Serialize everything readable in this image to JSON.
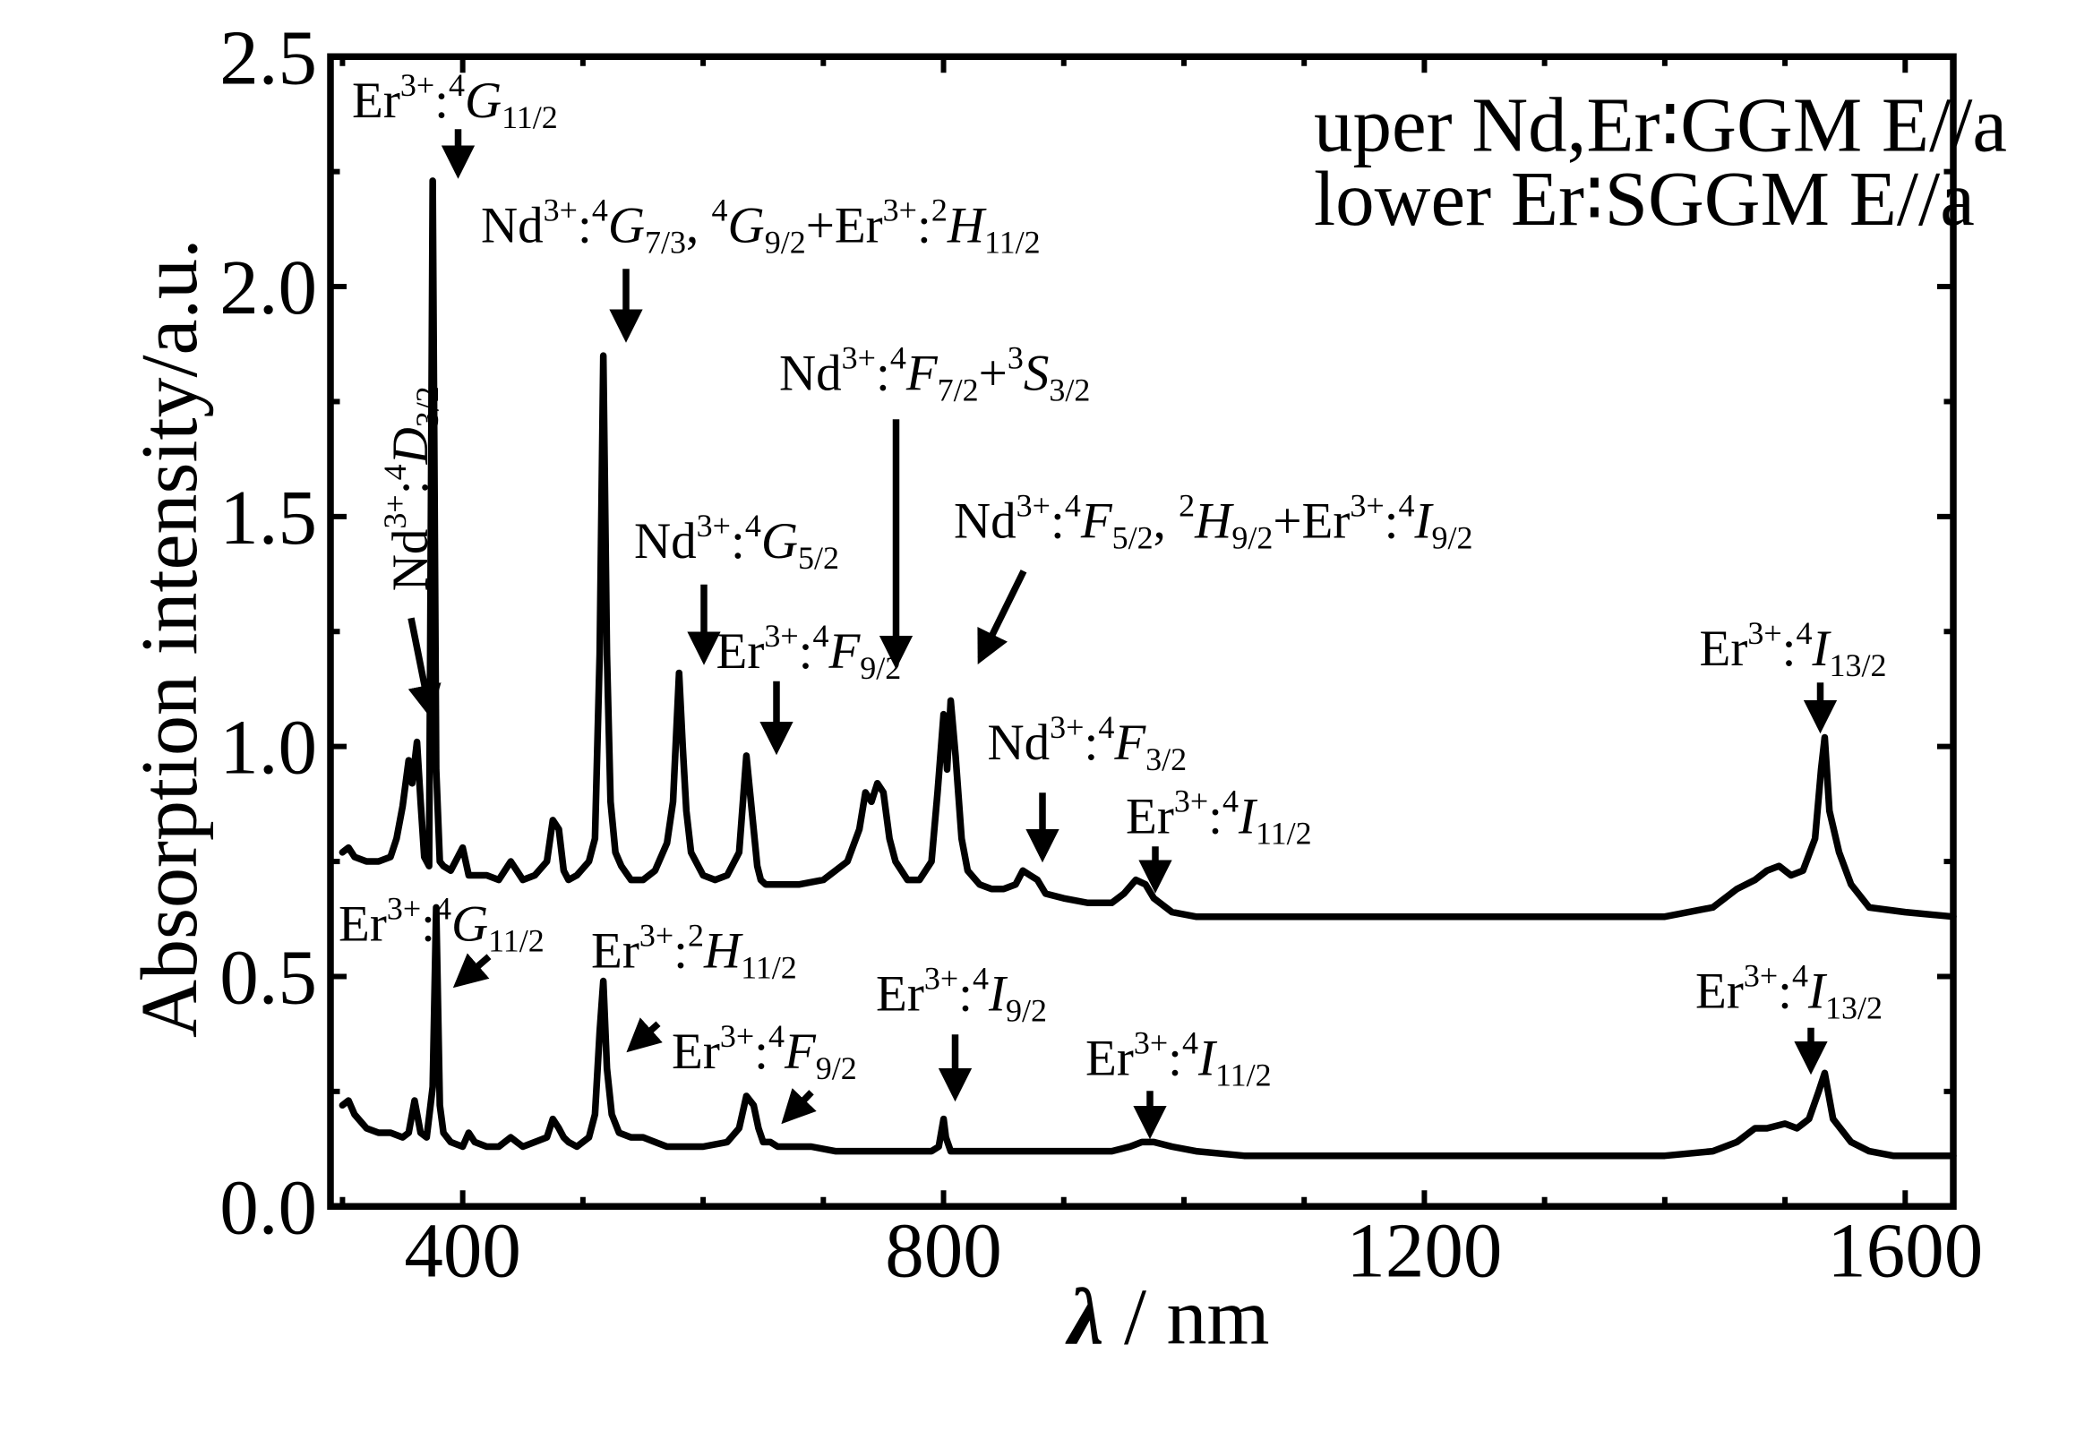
{
  "chart_data": {
    "type": "line",
    "title": "",
    "xlabel_symbol": "λ",
    "xlabel_unit": "/ nm",
    "ylabel": "Absorption intensity/a.u.",
    "xlim": [
      290,
      1640
    ],
    "ylim": [
      0,
      2.5
    ],
    "xticks": [
      400,
      800,
      1200,
      1600
    ],
    "xtick_labels": [
      "400",
      "800",
      "1200",
      "1600"
    ],
    "yticks": [
      0,
      0.5,
      1.0,
      1.5,
      2.0,
      2.5
    ],
    "ytick_labels": [
      "0.0",
      "0.5",
      "1.0",
      "1.5",
      "2.0",
      "2.5"
    ],
    "grid": false,
    "legend_position": "top-right",
    "legend_lines": [
      "uper Nd,Er∶GGM E//a",
      "lower Er∶SGGM   E//a"
    ],
    "series": [
      {
        "x": [
          300,
          305,
          310,
          320,
          330,
          340,
          345,
          350,
          355,
          358,
          362,
          365,
          368,
          372,
          375,
          378,
          381,
          384,
          390,
          400,
          405,
          410,
          420,
          430,
          440,
          445,
          450,
          460,
          470,
          475,
          480,
          484,
          488,
          495,
          505,
          510,
          514,
          517,
          520,
          523,
          527,
          532,
          540,
          550,
          560,
          570,
          575,
          580,
          583,
          586,
          590,
          600,
          610,
          620,
          630,
          636,
          642,
          645,
          648,
          652,
          660,
          670,
          680,
          700,
          720,
          730,
          735,
          740,
          745,
          750,
          755,
          760,
          770,
          780,
          790,
          795,
          800,
          803,
          806,
          810,
          815,
          820,
          830,
          840,
          850,
          860,
          866,
          872,
          878,
          885,
          900,
          920,
          940,
          950,
          960,
          968,
          975,
          990,
          1010,
          1050,
          1100,
          1200,
          1300,
          1400,
          1440,
          1460,
          1475,
          1485,
          1495,
          1505,
          1515,
          1525,
          1530,
          1533,
          1537,
          1545,
          1555,
          1570,
          1600,
          1640
        ],
        "y": [
          0.77,
          0.78,
          0.76,
          0.75,
          0.75,
          0.76,
          0.8,
          0.87,
          0.97,
          0.92,
          1.01,
          0.88,
          0.76,
          0.74,
          2.23,
          0.95,
          0.75,
          0.74,
          0.73,
          0.78,
          0.72,
          0.72,
          0.72,
          0.71,
          0.75,
          0.73,
          0.71,
          0.72,
          0.75,
          0.84,
          0.82,
          0.73,
          0.71,
          0.72,
          0.75,
          0.8,
          1.2,
          1.85,
          1.2,
          0.88,
          0.77,
          0.74,
          0.71,
          0.71,
          0.73,
          0.79,
          0.88,
          1.16,
          1.0,
          0.86,
          0.77,
          0.72,
          0.71,
          0.72,
          0.77,
          0.98,
          0.82,
          0.74,
          0.71,
          0.7,
          0.7,
          0.7,
          0.7,
          0.71,
          0.75,
          0.82,
          0.9,
          0.88,
          0.92,
          0.9,
          0.8,
          0.75,
          0.71,
          0.71,
          0.75,
          0.9,
          1.07,
          0.95,
          1.1,
          0.98,
          0.8,
          0.73,
          0.7,
          0.69,
          0.69,
          0.7,
          0.73,
          0.72,
          0.71,
          0.68,
          0.67,
          0.66,
          0.66,
          0.68,
          0.71,
          0.7,
          0.67,
          0.64,
          0.63,
          0.63,
          0.63,
          0.63,
          0.63,
          0.63,
          0.65,
          0.69,
          0.71,
          0.73,
          0.74,
          0.72,
          0.73,
          0.8,
          0.95,
          1.02,
          0.86,
          0.77,
          0.7,
          0.65,
          0.64,
          0.63
        ]
      },
      {
        "x": [
          300,
          305,
          310,
          320,
          330,
          340,
          350,
          355,
          360,
          365,
          370,
          375,
          378,
          381,
          384,
          390,
          400,
          405,
          410,
          420,
          430,
          440,
          445,
          450,
          460,
          470,
          475,
          480,
          484,
          488,
          495,
          505,
          510,
          514,
          517,
          520,
          524,
          530,
          540,
          550,
          560,
          570,
          580,
          590,
          600,
          620,
          630,
          636,
          642,
          646,
          650,
          656,
          662,
          670,
          690,
          710,
          750,
          780,
          790,
          796,
          800,
          802,
          806,
          810,
          830,
          860,
          900,
          940,
          955,
          965,
          975,
          990,
          1010,
          1050,
          1100,
          1200,
          1300,
          1400,
          1440,
          1460,
          1475,
          1485,
          1500,
          1510,
          1515,
          1520,
          1528,
          1533,
          1540,
          1555,
          1570,
          1590,
          1610,
          1640
        ],
        "y": [
          0.22,
          0.23,
          0.2,
          0.17,
          0.16,
          0.16,
          0.15,
          0.16,
          0.23,
          0.16,
          0.15,
          0.26,
          0.65,
          0.22,
          0.16,
          0.14,
          0.13,
          0.16,
          0.14,
          0.13,
          0.13,
          0.15,
          0.14,
          0.13,
          0.14,
          0.15,
          0.19,
          0.17,
          0.15,
          0.14,
          0.13,
          0.15,
          0.2,
          0.38,
          0.49,
          0.3,
          0.2,
          0.16,
          0.15,
          0.15,
          0.14,
          0.13,
          0.13,
          0.13,
          0.13,
          0.14,
          0.17,
          0.24,
          0.22,
          0.17,
          0.14,
          0.14,
          0.13,
          0.13,
          0.13,
          0.12,
          0.12,
          0.12,
          0.12,
          0.13,
          0.19,
          0.15,
          0.12,
          0.12,
          0.12,
          0.12,
          0.12,
          0.12,
          0.13,
          0.14,
          0.14,
          0.13,
          0.12,
          0.11,
          0.11,
          0.11,
          0.11,
          0.11,
          0.12,
          0.14,
          0.17,
          0.17,
          0.18,
          0.17,
          0.18,
          0.19,
          0.25,
          0.29,
          0.19,
          0.14,
          0.12,
          0.11,
          0.11,
          0.11
        ]
      }
    ],
    "annotations": [
      {
        "parts": [
          [
            "Er",
            "n"
          ],
          [
            "3+",
            "sup"
          ],
          [
            ":",
            "n"
          ],
          [
            "4",
            "sup"
          ],
          [
            "G",
            "i"
          ],
          [
            "11/2",
            "sub"
          ]
        ],
        "x": 262,
        "y": 87,
        "arrow": [
          341,
          96,
          341,
          128
        ]
      },
      {
        "parts": [
          [
            "Nd",
            "n"
          ],
          [
            "3+",
            "sup"
          ],
          [
            ":",
            "n"
          ],
          [
            "4",
            "sup"
          ],
          [
            "G",
            "i"
          ],
          [
            "7/3",
            "sub"
          ],
          [
            ", ",
            "n"
          ],
          [
            "4",
            "sup"
          ],
          [
            "G",
            "i"
          ],
          [
            "9/2",
            "sub"
          ],
          [
            "+Er",
            "n"
          ],
          [
            "3+",
            "sup"
          ],
          [
            ":",
            "n"
          ],
          [
            "2",
            "sup"
          ],
          [
            "H",
            "i"
          ],
          [
            "11/2",
            "sub"
          ]
        ],
        "x": 358,
        "y": 180,
        "arrow": [
          466,
          200,
          466,
          250
        ]
      },
      {
        "parts": [
          [
            "Nd",
            "n"
          ],
          [
            "3+",
            "sup"
          ],
          [
            ":",
            "n"
          ],
          [
            "4",
            "sup"
          ],
          [
            "F",
            "i"
          ],
          [
            "7/2",
            "sub"
          ],
          [
            "+",
            "n"
          ],
          [
            "3",
            "sup"
          ],
          [
            "S",
            "i"
          ],
          [
            "3/2",
            "sub"
          ]
        ],
        "x": 580,
        "y": 290,
        "arrow": [
          667,
          312,
          667,
          493
        ]
      },
      {
        "parts": [
          [
            "Nd",
            "n"
          ],
          [
            "3+",
            "sup"
          ],
          [
            ":",
            "n"
          ],
          [
            "4",
            "sup"
          ],
          [
            "G",
            "i"
          ],
          [
            "5/2",
            "sub"
          ]
        ],
        "x": 472,
        "y": 415,
        "arrow": [
          524,
          435,
          524,
          490
        ]
      },
      {
        "parts": [
          [
            "Nd",
            "n"
          ],
          [
            "3+",
            "sup"
          ],
          [
            ":",
            "n"
          ],
          [
            "4",
            "sup"
          ],
          [
            "F",
            "i"
          ],
          [
            "5/2",
            "sub"
          ],
          [
            ", ",
            "n"
          ],
          [
            "2",
            "sup"
          ],
          [
            "H",
            "i"
          ],
          [
            "9/2",
            "sub"
          ],
          [
            "+Er",
            "n"
          ],
          [
            "3+",
            "sup"
          ],
          [
            ":",
            "n"
          ],
          [
            "4",
            "sup"
          ],
          [
            "I",
            "i"
          ],
          [
            "9/2",
            "sub"
          ]
        ],
        "x": 710,
        "y": 400,
        "arrow": [
          762,
          425,
          730,
          490
        ]
      },
      {
        "parts": [
          [
            "Er",
            "n"
          ],
          [
            "3+",
            "sup"
          ],
          [
            ":",
            "n"
          ],
          [
            "4",
            "sup"
          ],
          [
            "F",
            "i"
          ],
          [
            "9/2",
            "sub"
          ]
        ],
        "x": 533,
        "y": 497,
        "arrow": [
          578,
          507,
          578,
          557
        ]
      },
      {
        "parts": [
          [
            "Nd",
            "n"
          ],
          [
            "3+",
            "sup"
          ],
          [
            ":",
            "n"
          ],
          [
            "4",
            "sup"
          ],
          [
            "F",
            "i"
          ],
          [
            "3/2",
            "sub"
          ]
        ],
        "x": 735,
        "y": 565,
        "arrow": [
          776,
          590,
          776,
          637
        ]
      },
      {
        "parts": [
          [
            "Er",
            "n"
          ],
          [
            "3+",
            "sup"
          ],
          [
            ":",
            "n"
          ],
          [
            "4",
            "sup"
          ],
          [
            "I",
            "i"
          ],
          [
            "11/2",
            "sub"
          ]
        ],
        "x": 838,
        "y": 620,
        "arrow": [
          860,
          630,
          860,
          660
        ]
      },
      {
        "parts": [
          [
            "Er",
            "n"
          ],
          [
            "3+",
            "sup"
          ],
          [
            ":",
            "n"
          ],
          [
            "4",
            "sup"
          ],
          [
            "I",
            "i"
          ],
          [
            "13/2",
            "sub"
          ]
        ],
        "x": 1265,
        "y": 495,
        "arrow": [
          1355,
          508,
          1355,
          541
        ]
      },
      {
        "parts": [
          [
            "Er",
            "n"
          ],
          [
            "3+",
            "sup"
          ],
          [
            ":",
            "n"
          ],
          [
            "4",
            "sup"
          ],
          [
            "G",
            "i"
          ],
          [
            "11/2",
            "sub"
          ]
        ],
        "x": 252,
        "y": 700,
        "arrow": [
          364,
          712,
          341,
          732
        ]
      },
      {
        "parts": [
          [
            "Er",
            "n"
          ],
          [
            "3+",
            "sup"
          ],
          [
            ":",
            "n"
          ],
          [
            "2",
            "sup"
          ],
          [
            "H",
            "i"
          ],
          [
            "11/2",
            "sub"
          ]
        ],
        "x": 440,
        "y": 720,
        "arrow": [
          490,
          762,
          470,
          780
        ]
      },
      {
        "parts": [
          [
            "Er",
            "n"
          ],
          [
            "3+",
            "sup"
          ],
          [
            ":",
            "n"
          ],
          [
            "4",
            "sup"
          ],
          [
            "I",
            "i"
          ],
          [
            "9/2",
            "sub"
          ]
        ],
        "x": 652,
        "y": 752,
        "arrow": [
          711,
          770,
          711,
          815
        ]
      },
      {
        "parts": [
          [
            "Er",
            "n"
          ],
          [
            "3+",
            "sup"
          ],
          [
            ":",
            "n"
          ],
          [
            "4",
            "sup"
          ],
          [
            "F",
            "i"
          ],
          [
            "9/2",
            "sub"
          ]
        ],
        "x": 500,
        "y": 795,
        "arrow": [
          604,
          813,
          585,
          833
        ]
      },
      {
        "parts": [
          [
            "Er",
            "n"
          ],
          [
            "3+",
            "sup"
          ],
          [
            ":",
            "n"
          ],
          [
            "4",
            "sup"
          ],
          [
            "I",
            "i"
          ],
          [
            "11/2",
            "sub"
          ]
        ],
        "x": 808,
        "y": 800,
        "arrow": [
          856,
          812,
          856,
          843
        ]
      },
      {
        "parts": [
          [
            "Er",
            "n"
          ],
          [
            "3+",
            "sup"
          ],
          [
            ":",
            "n"
          ],
          [
            "4",
            "sup"
          ],
          [
            "I",
            "i"
          ],
          [
            "13/2",
            "sub"
          ]
        ],
        "x": 1262,
        "y": 750,
        "arrow": [
          1348,
          765,
          1348,
          795
        ]
      },
      {
        "parts": [
          [
            "Nd",
            "n"
          ],
          [
            "3+",
            "sup"
          ],
          [
            ":",
            "n"
          ],
          [
            "4",
            "sup"
          ],
          [
            "D",
            "i"
          ],
          [
            "3/2",
            "sub"
          ]
        ],
        "x": 318,
        "y": 440,
        "rotate": -90,
        "arrow": [
          306,
          460,
          320,
          530
        ]
      }
    ]
  }
}
